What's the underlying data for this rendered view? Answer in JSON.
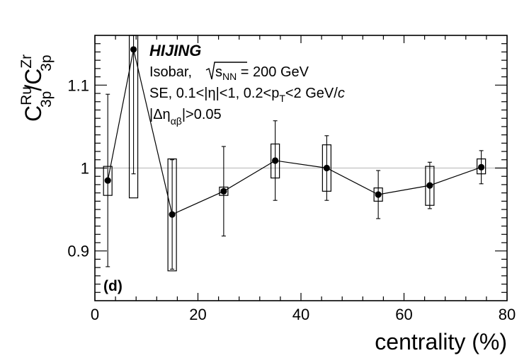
{
  "chart_data": {
    "type": "scatter",
    "title": "",
    "xlabel": "centrality (%)",
    "ylabel": {
      "base1": "C",
      "sup1": "Ru",
      "sub1": "3p",
      "slash": "/",
      "base2": "C",
      "sup2": "Zr",
      "sub2": "3p"
    },
    "xlim": [
      0,
      80
    ],
    "ylim": [
      0.84,
      1.16
    ],
    "x_ticks": [
      0,
      20,
      40,
      60,
      80
    ],
    "x_tick_labels": [
      "0",
      "20",
      "40",
      "60",
      "80"
    ],
    "y_ticks": [
      0.9,
      1.0,
      1.1
    ],
    "y_tick_labels": [
      "0.9",
      "1",
      "1.1"
    ],
    "reference_line": 1.0,
    "series": [
      {
        "name": "HIJING",
        "x": [
          2.5,
          7.5,
          15,
          25,
          35,
          45,
          55,
          65,
          75
        ],
        "y": [
          0.985,
          1.143,
          0.944,
          0.972,
          1.009,
          1.0,
          0.968,
          0.979,
          1.001
        ],
        "stat_err": [
          0.104,
          0.15,
          0.066,
          0.054,
          0.048,
          0.039,
          0.029,
          0.028,
          0.02
        ],
        "sys_low": [
          0.967,
          0.964,
          0.876,
          0.967,
          0.988,
          0.972,
          0.96,
          0.955,
          0.993
        ],
        "sys_high": [
          1.002,
          1.16,
          1.011,
          0.977,
          1.029,
          1.028,
          0.976,
          1.002,
          1.011
        ]
      }
    ],
    "annotations": {
      "generator": "HIJING",
      "line1_pre": "Isobar, ",
      "line1_sqrt": "s",
      "line1_sqrt_sub": "NN",
      "line1_post": " = 200 GeV",
      "line2_pre": "SE, 0.1<|η|<1, 0.2<p",
      "line2_sub": "T",
      "line2_post": "<2 GeV/",
      "line2_c": "c",
      "line3_pre": "|Δη",
      "line3_sub": "αβ",
      "line3_post": "|>0.05",
      "panel_label": "(d)"
    }
  }
}
